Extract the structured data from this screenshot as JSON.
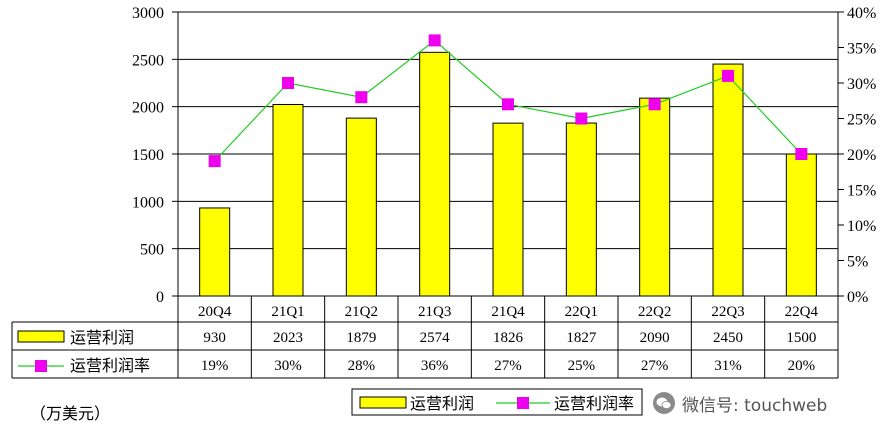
{
  "chart_data": {
    "type": "bar",
    "categories": [
      "20Q4",
      "21Q1",
      "21Q2",
      "21Q3",
      "21Q4",
      "22Q1",
      "22Q2",
      "22Q3",
      "22Q4"
    ],
    "series": [
      {
        "name": "运营利润",
        "type": "bar",
        "axis": "left",
        "values": [
          930,
          2023,
          1879,
          2574,
          1826,
          1827,
          2090,
          2450,
          1500
        ],
        "labels": [
          "930",
          "2023",
          "1879",
          "2574",
          "1826",
          "1827",
          "2090",
          "2450",
          "1500"
        ],
        "color": "#ffff00"
      },
      {
        "name": "运营利润率",
        "type": "line",
        "axis": "right",
        "values": [
          19,
          30,
          28,
          36,
          27,
          25,
          27,
          31,
          20
        ],
        "labels": [
          "19%",
          "30%",
          "28%",
          "36%",
          "27%",
          "25%",
          "27%",
          "31%",
          "20%"
        ],
        "color": "#22cc22",
        "marker_color": "#ee00ee"
      }
    ],
    "y_left": {
      "lim": [
        0,
        3000
      ],
      "ticks": [
        "0",
        "500",
        "1000",
        "1500",
        "2000",
        "2500",
        "3000"
      ]
    },
    "y_right": {
      "lim": [
        0,
        40
      ],
      "ticks": [
        "0%",
        "5%",
        "10%",
        "15%",
        "20%",
        "25%",
        "30%",
        "35%",
        "40%"
      ]
    },
    "unit_note": "（万美元）",
    "legend_placement": "bottom-center",
    "grid": true
  },
  "watermark": {
    "text": "微信号: touchweb",
    "icon": "wechat-icon"
  }
}
